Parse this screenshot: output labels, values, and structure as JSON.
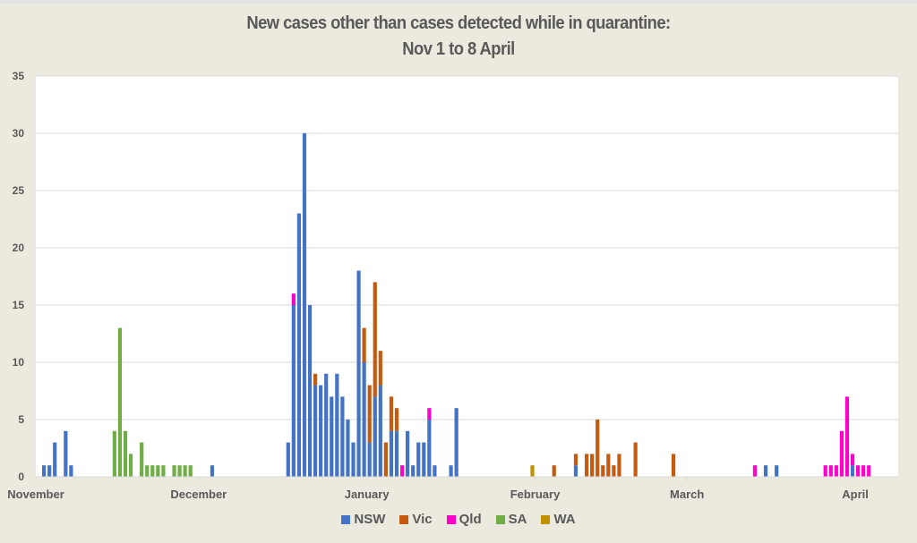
{
  "chart_data": {
    "type": "bar",
    "stacked": true,
    "title": "New cases other than cases detected while in quarantine:",
    "subtitle": "Nov 1 to 8 April",
    "xlabel": "",
    "ylabel": "",
    "ylim": [
      0,
      35
    ],
    "yticks": [
      0,
      5,
      10,
      15,
      20,
      25,
      30,
      35
    ],
    "grid": true,
    "legend_position": "bottom",
    "start_date": "Nov 1",
    "total_days": 159,
    "x_ticks": [
      {
        "label": "November",
        "day": 0
      },
      {
        "label": "December",
        "day": 30
      },
      {
        "label": "January",
        "day": 61
      },
      {
        "label": "February",
        "day": 92
      },
      {
        "label": "March",
        "day": 120
      },
      {
        "label": "April",
        "day": 151
      }
    ],
    "series": [
      {
        "name": "NSW",
        "color": "#4472C4"
      },
      {
        "name": "Vic",
        "color": "#C55A11"
      },
      {
        "name": "Qld",
        "color": "#FF00CC"
      },
      {
        "name": "SA",
        "color": "#70AD47"
      },
      {
        "name": "WA",
        "color": "#BF9000"
      }
    ],
    "points": [
      {
        "date": "Nov 2",
        "day": 1,
        "NSW": 1
      },
      {
        "date": "Nov 3",
        "day": 2,
        "NSW": 1
      },
      {
        "date": "Nov 4",
        "day": 3,
        "NSW": 3
      },
      {
        "date": "Nov 6",
        "day": 5,
        "NSW": 4
      },
      {
        "date": "Nov 7",
        "day": 6,
        "NSW": 1
      },
      {
        "date": "Nov 15",
        "day": 14,
        "SA": 4
      },
      {
        "date": "Nov 16",
        "day": 15,
        "SA": 13
      },
      {
        "date": "Nov 17",
        "day": 16,
        "SA": 4
      },
      {
        "date": "Nov 18",
        "day": 17,
        "SA": 2
      },
      {
        "date": "Nov 20",
        "day": 19,
        "SA": 3
      },
      {
        "date": "Nov 21",
        "day": 20,
        "SA": 1
      },
      {
        "date": "Nov 22",
        "day": 21,
        "SA": 1
      },
      {
        "date": "Nov 23",
        "day": 22,
        "SA": 1
      },
      {
        "date": "Nov 24",
        "day": 23,
        "SA": 1
      },
      {
        "date": "Nov 26",
        "day": 25,
        "SA": 1
      },
      {
        "date": "Nov 27",
        "day": 26,
        "SA": 1
      },
      {
        "date": "Nov 28",
        "day": 27,
        "SA": 1
      },
      {
        "date": "Nov 29",
        "day": 28,
        "SA": 1
      },
      {
        "date": "Dec 3",
        "day": 32,
        "NSW": 1
      },
      {
        "date": "Dec 17",
        "day": 46,
        "NSW": 3
      },
      {
        "date": "Dec 18",
        "day": 47,
        "NSW": 15,
        "Qld": 1
      },
      {
        "date": "Dec 19",
        "day": 48,
        "NSW": 23
      },
      {
        "date": "Dec 20",
        "day": 49,
        "NSW": 30
      },
      {
        "date": "Dec 21",
        "day": 50,
        "NSW": 15
      },
      {
        "date": "Dec 22",
        "day": 51,
        "NSW": 8,
        "Vic": 1
      },
      {
        "date": "Dec 23",
        "day": 52,
        "NSW": 8
      },
      {
        "date": "Dec 24",
        "day": 53,
        "NSW": 9
      },
      {
        "date": "Dec 25",
        "day": 54,
        "NSW": 7
      },
      {
        "date": "Dec 26",
        "day": 55,
        "NSW": 9
      },
      {
        "date": "Dec 27",
        "day": 56,
        "NSW": 7
      },
      {
        "date": "Dec 28",
        "day": 57,
        "NSW": 5
      },
      {
        "date": "Dec 29",
        "day": 58,
        "NSW": 3
      },
      {
        "date": "Dec 30",
        "day": 59,
        "NSW": 18
      },
      {
        "date": "Dec 31",
        "day": 60,
        "NSW": 10,
        "Vic": 3
      },
      {
        "date": "Jan 1",
        "day": 61,
        "NSW": 3,
        "Vic": 5
      },
      {
        "date": "Jan 2",
        "day": 62,
        "NSW": 7,
        "Vic": 10
      },
      {
        "date": "Jan 3",
        "day": 63,
        "NSW": 8,
        "Vic": 3
      },
      {
        "date": "Jan 4",
        "day": 64,
        "Vic": 3
      },
      {
        "date": "Jan 5",
        "day": 65,
        "NSW": 4,
        "Vic": 3
      },
      {
        "date": "Jan 6",
        "day": 66,
        "NSW": 4,
        "Vic": 2
      },
      {
        "date": "Jan 7",
        "day": 67,
        "Qld": 1
      },
      {
        "date": "Jan 8",
        "day": 68,
        "NSW": 4
      },
      {
        "date": "Jan 9",
        "day": 69,
        "NSW": 1
      },
      {
        "date": "Jan 10",
        "day": 70,
        "NSW": 3
      },
      {
        "date": "Jan 11",
        "day": 71,
        "NSW": 3
      },
      {
        "date": "Jan 12",
        "day": 72,
        "NSW": 5,
        "Qld": 1
      },
      {
        "date": "Jan 13",
        "day": 73,
        "NSW": 1
      },
      {
        "date": "Jan 16",
        "day": 76,
        "NSW": 1
      },
      {
        "date": "Jan 17",
        "day": 77,
        "NSW": 6
      },
      {
        "date": "Jan 31",
        "day": 91,
        "WA": 1
      },
      {
        "date": "Feb 4",
        "day": 95,
        "Vic": 1
      },
      {
        "date": "Feb 8",
        "day": 99,
        "NSW": 1,
        "Vic": 1
      },
      {
        "date": "Feb 10",
        "day": 101,
        "Vic": 2
      },
      {
        "date": "Feb 11",
        "day": 102,
        "Vic": 2
      },
      {
        "date": "Feb 12",
        "day": 103,
        "Vic": 5
      },
      {
        "date": "Feb 13",
        "day": 104,
        "Vic": 1
      },
      {
        "date": "Feb 14",
        "day": 105,
        "Vic": 2
      },
      {
        "date": "Feb 15",
        "day": 106,
        "Vic": 1
      },
      {
        "date": "Feb 16",
        "day": 107,
        "Vic": 2
      },
      {
        "date": "Feb 19",
        "day": 110,
        "Vic": 3
      },
      {
        "date": "Feb 26",
        "day": 117,
        "Vic": 2
      },
      {
        "date": "Mar 13",
        "day": 132,
        "Qld": 1
      },
      {
        "date": "Mar 15",
        "day": 134,
        "NSW": 1
      },
      {
        "date": "Mar 17",
        "day": 136,
        "NSW": 1
      },
      {
        "date": "Mar 26",
        "day": 145,
        "Qld": 1
      },
      {
        "date": "Mar 27",
        "day": 146,
        "Qld": 1
      },
      {
        "date": "Mar 28",
        "day": 147,
        "Qld": 1
      },
      {
        "date": "Mar 29",
        "day": 148,
        "Qld": 4
      },
      {
        "date": "Mar 30",
        "day": 149,
        "Qld": 7
      },
      {
        "date": "Mar 31",
        "day": 150,
        "NSW": 1,
        "Qld": 1
      },
      {
        "date": "Apr 1",
        "day": 151,
        "Qld": 1
      },
      {
        "date": "Apr 2",
        "day": 152,
        "Qld": 1
      },
      {
        "date": "Apr 3",
        "day": 153,
        "Qld": 1
      }
    ]
  }
}
